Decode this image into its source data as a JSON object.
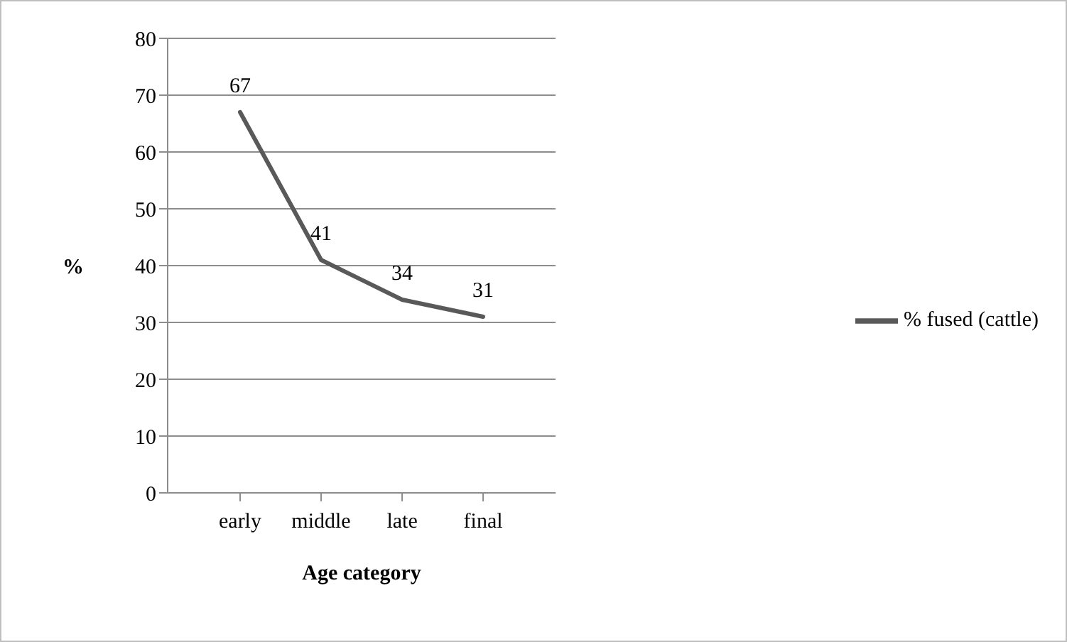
{
  "chart_data": {
    "type": "line",
    "xlabel": "Age category",
    "ylabel": "%",
    "categories": [
      "early",
      "middle",
      "late",
      "final"
    ],
    "series": [
      {
        "name": "% fused (cattle)",
        "color": "#595959",
        "values": [
          67,
          41,
          34,
          31
        ]
      }
    ],
    "ylim": [
      0,
      80
    ],
    "yticks": [
      0,
      10,
      20,
      30,
      40,
      50,
      60,
      70,
      80
    ],
    "grid": "y",
    "legend": "right",
    "marker": "none",
    "data_labels": true
  }
}
